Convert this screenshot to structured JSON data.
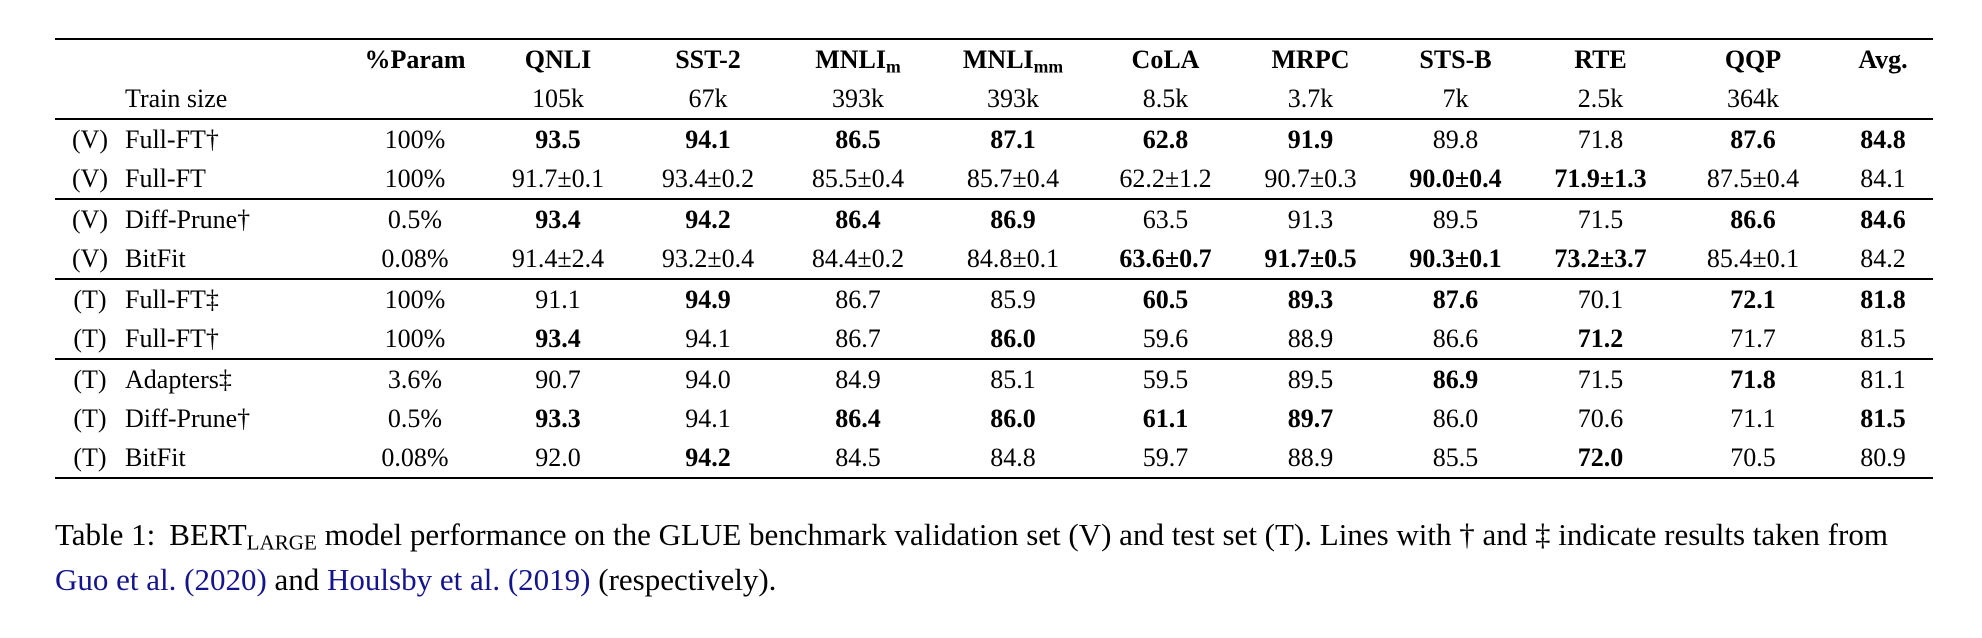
{
  "colors": {
    "citation_link": "#14148C",
    "text": "#000000",
    "background": "#FFFFFF"
  },
  "table": {
    "header": {
      "param_label": "%Param",
      "train_size_label": "Train size",
      "avg_label": "Avg.",
      "columns": [
        {
          "name": "QNLI",
          "sub": "",
          "train_size": "105k"
        },
        {
          "name": "SST-2",
          "sub": "",
          "train_size": "67k"
        },
        {
          "name": "MNLI",
          "sub": "m",
          "train_size": "393k"
        },
        {
          "name": "MNLI",
          "sub": "mm",
          "train_size": "393k"
        },
        {
          "name": "CoLA",
          "sub": "",
          "train_size": "8.5k"
        },
        {
          "name": "MRPC",
          "sub": "",
          "train_size": "3.7k"
        },
        {
          "name": "STS-B",
          "sub": "",
          "train_size": "7k"
        },
        {
          "name": "RTE",
          "sub": "",
          "train_size": "2.5k"
        },
        {
          "name": "QQP",
          "sub": "",
          "train_size": "364k"
        }
      ]
    },
    "groups": [
      {
        "rows": [
          {
            "set": "(V)",
            "method": "Full-FT†",
            "param": "100%",
            "cells": [
              {
                "v": "93.5",
                "b": true
              },
              {
                "v": "94.1",
                "b": true
              },
              {
                "v": "86.5",
                "b": true
              },
              {
                "v": "87.1",
                "b": true
              },
              {
                "v": "62.8",
                "b": true
              },
              {
                "v": "91.9",
                "b": true
              },
              {
                "v": "89.8",
                "b": false
              },
              {
                "v": "71.8",
                "b": false
              },
              {
                "v": "87.6",
                "b": true
              },
              {
                "v": "84.8",
                "b": true
              }
            ]
          },
          {
            "set": "(V)",
            "method": "Full-FT",
            "param": "100%",
            "cells": [
              {
                "v": "91.7±0.1",
                "b": false
              },
              {
                "v": "93.4±0.2",
                "b": false
              },
              {
                "v": "85.5±0.4",
                "b": false
              },
              {
                "v": "85.7±0.4",
                "b": false
              },
              {
                "v": "62.2±1.2",
                "b": false
              },
              {
                "v": "90.7±0.3",
                "b": false
              },
              {
                "v": "90.0±0.4",
                "b": true
              },
              {
                "v": "71.9±1.3",
                "b": true
              },
              {
                "v": "87.5±0.4",
                "b": false
              },
              {
                "v": "84.1",
                "b": false
              }
            ]
          }
        ]
      },
      {
        "rows": [
          {
            "set": "(V)",
            "method": "Diff-Prune†",
            "param": "0.5%",
            "cells": [
              {
                "v": "93.4",
                "b": true
              },
              {
                "v": "94.2",
                "b": true
              },
              {
                "v": "86.4",
                "b": true
              },
              {
                "v": "86.9",
                "b": true
              },
              {
                "v": "63.5",
                "b": false
              },
              {
                "v": "91.3",
                "b": false
              },
              {
                "v": "89.5",
                "b": false
              },
              {
                "v": "71.5",
                "b": false
              },
              {
                "v": "86.6",
                "b": true
              },
              {
                "v": "84.6",
                "b": true
              }
            ]
          },
          {
            "set": "(V)",
            "method": "BitFit",
            "param": "0.08%",
            "cells": [
              {
                "v": "91.4±2.4",
                "b": false
              },
              {
                "v": "93.2±0.4",
                "b": false
              },
              {
                "v": "84.4±0.2",
                "b": false
              },
              {
                "v": "84.8±0.1",
                "b": false
              },
              {
                "v": "63.6±0.7",
                "b": true
              },
              {
                "v": "91.7±0.5",
                "b": true
              },
              {
                "v": "90.3±0.1",
                "b": true
              },
              {
                "v": "73.2±3.7",
                "b": true
              },
              {
                "v": "85.4±0.1",
                "b": false
              },
              {
                "v": "84.2",
                "b": false
              }
            ]
          }
        ]
      },
      {
        "rows": [
          {
            "set": "(T)",
            "method": "Full-FT‡",
            "param": "100%",
            "cells": [
              {
                "v": "91.1",
                "b": false
              },
              {
                "v": "94.9",
                "b": true
              },
              {
                "v": "86.7",
                "b": false
              },
              {
                "v": "85.9",
                "b": false
              },
              {
                "v": "60.5",
                "b": true
              },
              {
                "v": "89.3",
                "b": true
              },
              {
                "v": "87.6",
                "b": true
              },
              {
                "v": "70.1",
                "b": false
              },
              {
                "v": "72.1",
                "b": true
              },
              {
                "v": "81.8",
                "b": true
              }
            ]
          },
          {
            "set": "(T)",
            "method": "Full-FT†",
            "param": "100%",
            "cells": [
              {
                "v": "93.4",
                "b": true
              },
              {
                "v": "94.1",
                "b": false
              },
              {
                "v": "86.7",
                "b": false
              },
              {
                "v": "86.0",
                "b": true
              },
              {
                "v": "59.6",
                "b": false
              },
              {
                "v": "88.9",
                "b": false
              },
              {
                "v": "86.6",
                "b": false
              },
              {
                "v": "71.2",
                "b": true
              },
              {
                "v": "71.7",
                "b": false
              },
              {
                "v": "81.5",
                "b": false
              }
            ]
          }
        ]
      },
      {
        "rows": [
          {
            "set": "(T)",
            "method": "Adapters‡",
            "param": "3.6%",
            "cells": [
              {
                "v": "90.7",
                "b": false
              },
              {
                "v": "94.0",
                "b": false
              },
              {
                "v": "84.9",
                "b": false
              },
              {
                "v": "85.1",
                "b": false
              },
              {
                "v": "59.5",
                "b": false
              },
              {
                "v": "89.5",
                "b": false
              },
              {
                "v": "86.9",
                "b": true
              },
              {
                "v": "71.5",
                "b": false
              },
              {
                "v": "71.8",
                "b": true
              },
              {
                "v": "81.1",
                "b": false
              }
            ]
          },
          {
            "set": "(T)",
            "method": "Diff-Prune†",
            "param": "0.5%",
            "cells": [
              {
                "v": "93.3",
                "b": true
              },
              {
                "v": "94.1",
                "b": false
              },
              {
                "v": "86.4",
                "b": true
              },
              {
                "v": "86.0",
                "b": true
              },
              {
                "v": "61.1",
                "b": true
              },
              {
                "v": "89.7",
                "b": true
              },
              {
                "v": "86.0",
                "b": false
              },
              {
                "v": "70.6",
                "b": false
              },
              {
                "v": "71.1",
                "b": false
              },
              {
                "v": "81.5",
                "b": true
              }
            ]
          },
          {
            "set": "(T)",
            "method": "BitFit",
            "param": "0.08%",
            "cells": [
              {
                "v": "92.0",
                "b": false
              },
              {
                "v": "94.2",
                "b": true
              },
              {
                "v": "84.5",
                "b": false
              },
              {
                "v": "84.8",
                "b": false
              },
              {
                "v": "59.7",
                "b": false
              },
              {
                "v": "88.9",
                "b": false
              },
              {
                "v": "85.5",
                "b": false
              },
              {
                "v": "72.0",
                "b": true
              },
              {
                "v": "70.5",
                "b": false
              },
              {
                "v": "80.9",
                "b": false
              }
            ]
          }
        ]
      }
    ]
  },
  "caption": {
    "label": "Table 1:",
    "model_name": "BERT",
    "model_sub": "LARGE",
    "body1": " model performance on the GLUE benchmark validation set (V) and test set (T). Lines with † and ‡ indicate results taken from ",
    "cite1": "Guo et al. (2020)",
    "body2": " and ",
    "cite2": "Houlsby et al. (2019)",
    "body3": " (respectively)."
  }
}
